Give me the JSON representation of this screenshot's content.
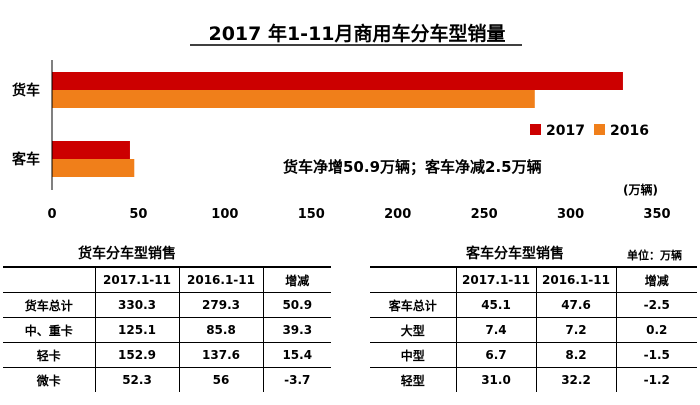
{
  "chart_data": {
    "type": "bar",
    "orientation": "horizontal",
    "title": "2017 年1-11月商用车分车型销量",
    "categories": [
      "货车",
      "客车"
    ],
    "series": [
      {
        "name": "2017",
        "values": [
          330.3,
          45.1
        ],
        "color": "#cc0000"
      },
      {
        "name": "2016",
        "values": [
          279.3,
          47.6
        ],
        "color": "#f07f1a"
      }
    ],
    "xlim": [
      0,
      350
    ],
    "ticks": [
      "0",
      "50",
      "100",
      "150",
      "200",
      "250",
      "300",
      "350"
    ],
    "unit_label": "(万辆)",
    "annotation": "货车净增50.9万辆；客车净减2.5万辆",
    "legend_position": "right",
    "grid": false
  },
  "truck_table": {
    "title": "货车分车型销售",
    "headers": [
      "",
      "2017.1-11",
      "2016.1-11",
      "增减"
    ],
    "rows": [
      [
        "货车总计",
        "330.3",
        "279.3",
        "50.9"
      ],
      [
        "中、重卡",
        "125.1",
        "85.8",
        "39.3"
      ],
      [
        "轻卡",
        "152.9",
        "137.6",
        "15.4"
      ],
      [
        "微卡",
        "52.3",
        "56",
        "-3.7"
      ]
    ]
  },
  "bus_table": {
    "title": "客车分车型销售",
    "unit": "单位：万辆",
    "headers": [
      "",
      "2017.1-11",
      "2016.1-11",
      "增减"
    ],
    "rows": [
      [
        "客车总计",
        "45.1",
        "47.6",
        "-2.5"
      ],
      [
        "大型",
        "7.4",
        "7.2",
        "0.2"
      ],
      [
        "中型",
        "6.7",
        "8.2",
        "-1.5"
      ],
      [
        "轻型",
        "31.0",
        "32.2",
        "-1.2"
      ]
    ]
  }
}
